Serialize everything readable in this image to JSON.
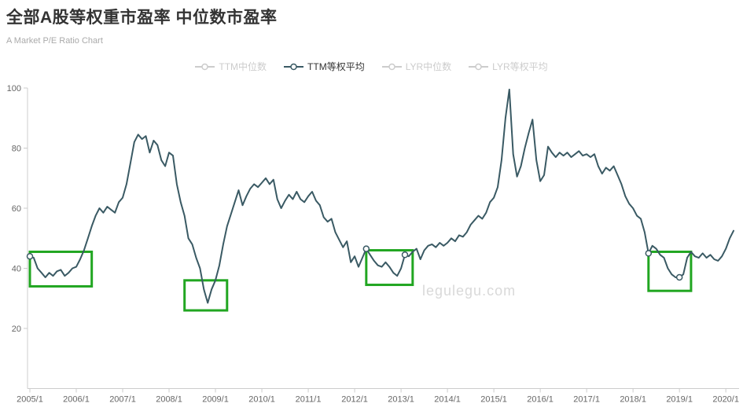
{
  "header": {
    "title": "全部A股等权重市盈率 中位数市盈率",
    "subtitle": "A Market P/E Ratio Chart"
  },
  "legend": {
    "items": [
      {
        "label": "TTM中位数",
        "active": false
      },
      {
        "label": "TTM等权平均",
        "active": true
      },
      {
        "label": "LYR中位数",
        "active": false
      },
      {
        "label": "LYR等权平均",
        "active": false
      }
    ]
  },
  "colors": {
    "line": "#3a5a64",
    "highlight_box": "#21a621",
    "title": "#333333",
    "subtitle": "#aaaaaa",
    "axis_line": "#cccccc",
    "tick_label": "#666666",
    "legend_inactive": "#cccccc",
    "legend_active_text": "#333333",
    "watermark": "#d9d9d9",
    "background": "#ffffff"
  },
  "chart_data": {
    "type": "line",
    "title": "全部A股等权重市盈率 中位数市盈率",
    "subtitle": "A Market P/E Ratio Chart",
    "watermark": "legulegu.com",
    "legend_position": "top-center",
    "grid": false,
    "ylim": [
      0,
      100
    ],
    "yticks": [
      20,
      40,
      60,
      80,
      100
    ],
    "xtick_labels": [
      "2005/1",
      "2006/1",
      "2007/1",
      "2008/1",
      "2009/1",
      "2010/1",
      "2011/1",
      "2012/1",
      "2013/1",
      "2014/1",
      "2015/1",
      "2016/1",
      "2017/1",
      "2018/1",
      "2019/1",
      "2020/1"
    ],
    "xtick_month_indices": [
      0,
      12,
      24,
      36,
      48,
      60,
      72,
      84,
      96,
      108,
      120,
      132,
      144,
      156,
      168,
      180
    ],
    "series": [
      {
        "name": "TTM等权平均",
        "x_start": "2005/1",
        "x_freq": "monthly",
        "values": [
          44,
          43.5,
          40,
          38.5,
          37,
          38.5,
          37.5,
          39,
          39.5,
          37.5,
          38.5,
          40,
          40.5,
          43,
          46,
          50,
          54,
          57.5,
          60,
          58.5,
          60.5,
          59.5,
          58.5,
          62,
          63.5,
          68,
          75,
          82,
          84.5,
          83,
          84,
          78.5,
          82.5,
          81,
          76,
          74,
          78.5,
          77.5,
          68,
          62,
          57.5,
          50,
          48,
          43.5,
          40,
          33,
          28.5,
          33,
          36,
          41,
          48,
          54,
          58,
          62,
          66,
          61,
          64,
          66.5,
          68,
          67,
          68.5,
          70,
          68,
          69.5,
          63,
          60,
          62.5,
          64.5,
          63,
          65.5,
          63,
          62,
          64,
          65.5,
          62.5,
          61,
          57,
          55.5,
          56.5,
          52,
          49.5,
          47,
          49,
          42,
          44,
          40.5,
          43.5,
          46.5,
          44.5,
          42.5,
          41,
          40.5,
          42,
          40.5,
          38.5,
          37.5,
          40,
          44.5,
          44,
          45.5,
          46.5,
          43,
          46,
          47.5,
          48,
          47,
          48.5,
          47.5,
          48.5,
          50,
          49,
          51,
          50.5,
          52,
          54.5,
          56,
          57.5,
          56.5,
          58.5,
          62,
          63.5,
          67,
          76,
          90,
          99.5,
          78,
          70.5,
          74,
          80,
          85,
          89.5,
          76,
          69,
          71,
          80.5,
          78.5,
          77,
          78.5,
          77.5,
          78.5,
          77,
          78,
          79,
          77.5,
          78,
          77,
          78,
          74,
          71.5,
          73.5,
          72.5,
          74,
          71,
          68,
          64,
          61.5,
          60,
          57.5,
          56.5,
          52,
          45,
          47.5,
          46.5,
          44.5,
          43.5,
          40,
          38,
          37,
          37,
          38,
          43.5,
          45.5,
          44,
          43.5,
          45,
          43.5,
          44.5,
          43,
          42.5,
          44,
          46.5,
          50,
          52.5
        ]
      }
    ],
    "marker_month_indices": [
      0,
      87,
      97,
      160,
      168
    ],
    "highlight_boxes": [
      {
        "start_month_index": 0,
        "end_month_index": 16,
        "value_low": 34,
        "value_high": 45.5
      },
      {
        "start_month_index": 40,
        "end_month_index": 51,
        "value_low": 26,
        "value_high": 36
      },
      {
        "start_month_index": 87,
        "end_month_index": 99,
        "value_low": 34.5,
        "value_high": 46
      },
      {
        "start_month_index": 160,
        "end_month_index": 171,
        "value_low": 32.5,
        "value_high": 45.5
      }
    ]
  }
}
